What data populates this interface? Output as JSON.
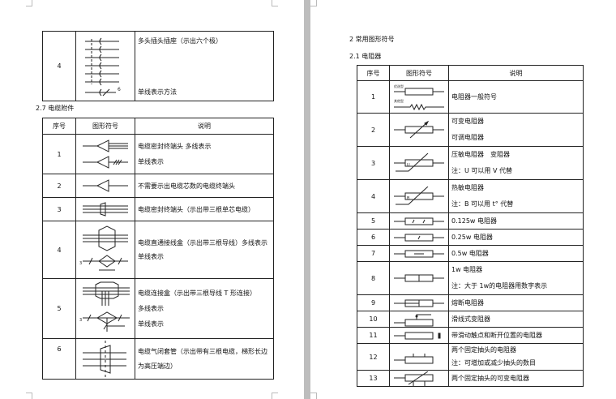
{
  "left_page": {
    "top_table": {
      "no": "4",
      "desc": [
        "多头插头插座（示出六个极）",
        "单线表示方法"
      ],
      "symbol_label": "6"
    },
    "section_title": "2.7 电缆附件",
    "table": {
      "headers": [
        "序号",
        "图形符号",
        "说明"
      ],
      "rows": [
        {
          "no": "1",
          "desc": [
            "电缆密封终端头 多线表示",
            "单线表示"
          ]
        },
        {
          "no": "2",
          "desc": [
            "不需要示出电缆芯数的电缆终端头"
          ]
        },
        {
          "no": "3",
          "desc": [
            "电缆密封终端头（示出带三根单芯电缆）"
          ]
        },
        {
          "no": "4",
          "desc": [
            "电缆直通接线盒（示出带三根导线）多线表示",
            "单线表示"
          ],
          "symbol_label": "3"
        },
        {
          "no": "5",
          "desc": [
            "电缆连接盒（示出带三根导线 T 形连接）",
            "多线表示",
            "单线表示"
          ],
          "symbol_label": "3"
        },
        {
          "no": "6",
          "desc": [
            "电缆气闭套管（示出带有三根电缆，梯形长边为高压端边）"
          ]
        }
      ]
    }
  },
  "right_page": {
    "section_title": "2 常用图形符号",
    "subsection_title": "2.1 电阻器",
    "table": {
      "headers": [
        "序号",
        "图形符号",
        "说明"
      ],
      "rows": [
        {
          "no": "1",
          "desc": [
            "电阻器一般符号"
          ],
          "symbol_labels": [
            "优选型",
            "其他型"
          ]
        },
        {
          "no": "2",
          "desc": [
            "可变电阻器",
            "可调电阻器"
          ]
        },
        {
          "no": "3",
          "desc": [
            "压敏电阻器　变阻器",
            "注：U 可以用 V 代替"
          ],
          "symbol_label": "U"
        },
        {
          "no": "4",
          "desc": [
            "热敏电阻器",
            "注：B 可以用 t° 代替"
          ],
          "symbol_label": "B"
        },
        {
          "no": "5",
          "desc": [
            "0.125w 电阻器"
          ]
        },
        {
          "no": "6",
          "desc": [
            "0.25w 电阻器"
          ]
        },
        {
          "no": "7",
          "desc": [
            "0.5w 电阻器"
          ]
        },
        {
          "no": "8",
          "desc": [
            "1w 电阻器",
            "注：大于 1w的电阻器用数字表示"
          ]
        },
        {
          "no": "9",
          "desc": [
            "熔断电阻器"
          ]
        },
        {
          "no": "10",
          "desc": [
            "滑线式变阻器"
          ]
        },
        {
          "no": "11",
          "desc": [
            "带滑动触点和断开位置的电阻器"
          ]
        },
        {
          "no": "12",
          "desc": [
            "两个固定抽头的电阻器",
            "注：可增加或减少抽头的数目"
          ]
        },
        {
          "no": "13",
          "desc": [
            "两个固定抽头的可变电阻器"
          ]
        }
      ]
    }
  }
}
